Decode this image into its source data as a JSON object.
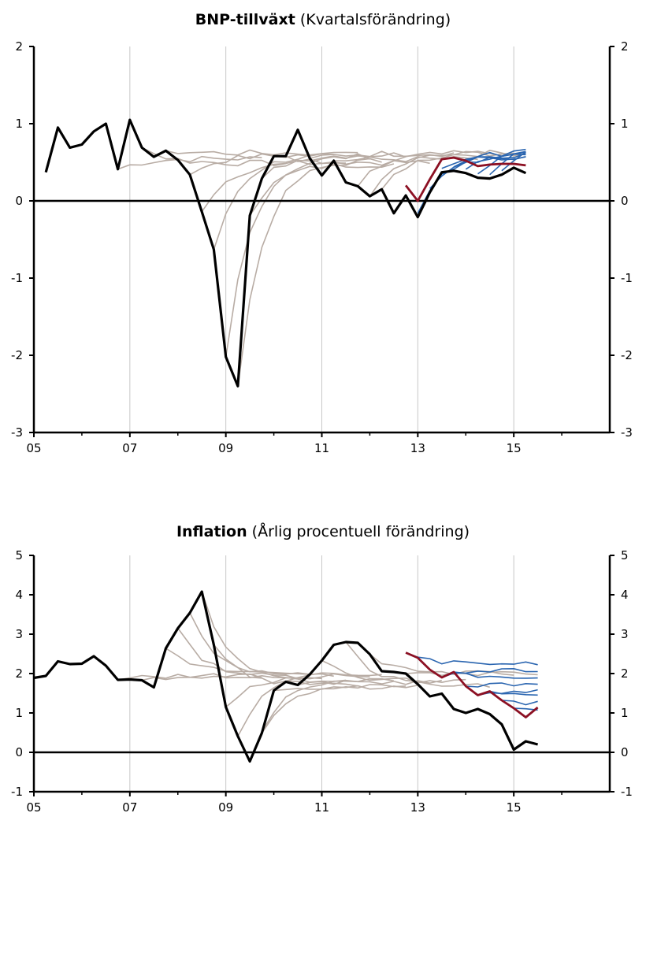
{
  "chart_data": [
    {
      "type": "line",
      "title_bold": "BNP-tillväxt",
      "title_rest": "(Kvartalsförändring)",
      "ylim": [
        -3,
        2
      ],
      "yticks": [
        "2",
        "1",
        "0",
        "-1",
        "-2",
        "-3"
      ],
      "xlim": [
        2005,
        2017
      ],
      "xticks": [
        "05",
        "07",
        "09",
        "11",
        "13",
        "15"
      ],
      "grid": "vertical",
      "colors": {
        "outcome": "#000000",
        "past_forecasts": "#b8aca4",
        "scenario_forecasts": "#2a65b0",
        "main_forecast": "#8c1023"
      },
      "series": [
        {
          "role": "outcome",
          "x": [
            2005.25,
            2005.5,
            2005.75,
            2006.0,
            2006.25,
            2006.5,
            2006.75,
            2007.0,
            2007.25,
            2007.5,
            2007.75,
            2008.0,
            2008.25,
            2008.5,
            2008.75,
            2009.0,
            2009.25,
            2009.5,
            2009.75,
            2010.0,
            2010.25,
            2010.5,
            2010.75,
            2011.0,
            2011.25,
            2011.5,
            2011.75,
            2012.0,
            2012.25,
            2012.5,
            2012.75,
            2013.0,
            2013.25,
            2013.5,
            2013.75,
            2014.0,
            2014.25,
            2014.5,
            2014.75,
            2015.0,
            2015.25
          ],
          "values": [
            0.37,
            0.95,
            0.69,
            0.73,
            0.9,
            1.0,
            0.41,
            1.05,
            0.69,
            0.57,
            0.65,
            0.53,
            0.34,
            -0.14,
            -0.63,
            -2.02,
            -2.4,
            -0.19,
            0.29,
            0.58,
            0.58,
            0.92,
            0.55,
            0.33,
            0.52,
            0.24,
            0.19,
            0.06,
            0.15,
            -0.16,
            0.07,
            -0.21,
            0.11,
            0.37,
            0.39,
            0.36,
            0.3,
            0.29,
            0.34,
            0.43,
            0.36
          ]
        },
        {
          "role": "main_forecast",
          "x": [
            2012.75,
            2013.0,
            2013.25,
            2013.5,
            2013.75,
            2014.0,
            2014.25,
            2014.5,
            2014.75,
            2015.0,
            2015.25
          ],
          "values": [
            0.2,
            0.0,
            0.28,
            0.54,
            0.56,
            0.52,
            0.45,
            0.47,
            0.48,
            0.48,
            0.46
          ]
        }
      ]
    },
    {
      "type": "line",
      "title_bold": "Inflation",
      "title_rest": "(Årlig procentuell förändring)",
      "ylim": [
        -1,
        5
      ],
      "yticks": [
        "5",
        "4",
        "3",
        "2",
        "1",
        "0",
        "-1"
      ],
      "xlim": [
        2005,
        2017
      ],
      "xticks": [
        "05",
        "07",
        "09",
        "11",
        "13",
        "15"
      ],
      "grid": "vertical",
      "colors": {
        "outcome": "#000000",
        "past_forecasts": "#b8aca4",
        "scenario_forecasts": "#2a65b0",
        "main_forecast": "#8c1023"
      },
      "series": [
        {
          "role": "outcome",
          "x": [
            2005.0,
            2005.25,
            2005.5,
            2005.75,
            2006.0,
            2006.25,
            2006.5,
            2006.75,
            2007.0,
            2007.25,
            2007.5,
            2007.75,
            2008.0,
            2008.25,
            2008.5,
            2008.75,
            2009.0,
            2009.25,
            2009.5,
            2009.75,
            2010.0,
            2010.25,
            2010.5,
            2010.75,
            2011.0,
            2011.25,
            2011.5,
            2011.75,
            2012.0,
            2012.25,
            2012.5,
            2012.75,
            2013.0,
            2013.25,
            2013.5,
            2013.75,
            2014.0,
            2014.25,
            2014.5,
            2014.75,
            2015.0,
            2015.25,
            2015.5
          ],
          "values": [
            1.89,
            1.94,
            2.31,
            2.24,
            2.25,
            2.44,
            2.2,
            1.84,
            1.85,
            1.83,
            1.65,
            2.64,
            3.15,
            3.54,
            4.08,
            2.73,
            1.15,
            0.41,
            -0.23,
            0.49,
            1.57,
            1.79,
            1.71,
            1.98,
            2.33,
            2.73,
            2.8,
            2.78,
            2.49,
            2.06,
            2.04,
            2.0,
            1.73,
            1.42,
            1.49,
            1.1,
            1.0,
            1.1,
            0.97,
            0.71,
            0.07,
            0.28,
            0.2
          ]
        },
        {
          "role": "main_forecast",
          "x": [
            2012.75,
            2013.0,
            2013.25,
            2013.5,
            2013.75,
            2014.0,
            2014.25,
            2014.5,
            2014.75,
            2015.0,
            2015.25,
            2015.5
          ],
          "values": [
            2.53,
            2.4,
            2.1,
            1.9,
            2.04,
            1.68,
            1.45,
            1.55,
            1.32,
            1.12,
            0.89,
            1.14
          ]
        }
      ]
    }
  ]
}
